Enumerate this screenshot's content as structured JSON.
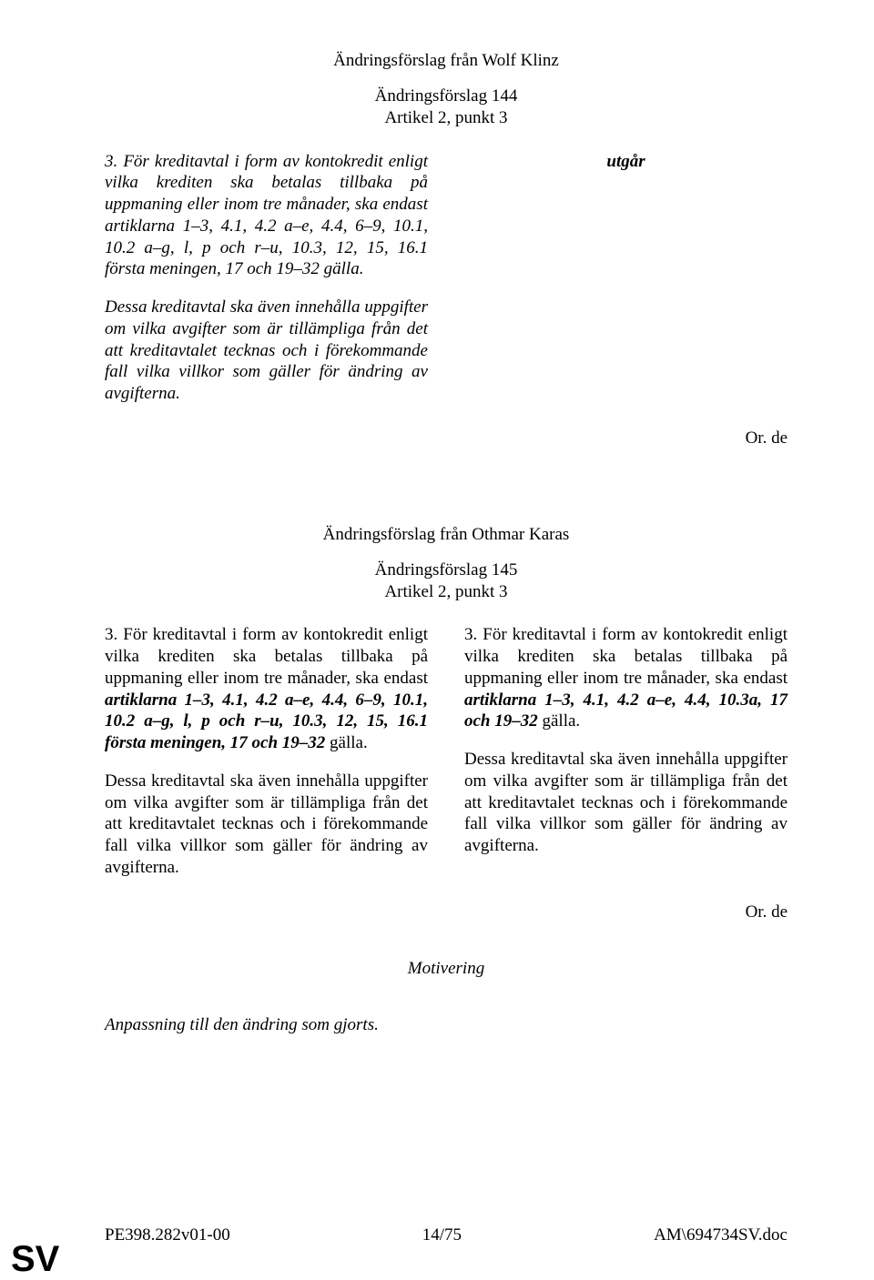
{
  "amend144": {
    "author": "Ändringsförslag från Wolf Klinz",
    "title_line1": "Ändringsförslag 144",
    "title_line2": "Artikel 2, punkt 3",
    "left_p1_prefix": "3. För kreditavtal i form av kontokredit enligt vilka krediten ska betalas tillbaka på uppmaning eller inom tre månader, ska endast artiklarna 1–3, 4.1, 4.2 a–e, 4.4, 6–9, 10.1, 10.2 a–g, l, p och r–u, 10.3, 12, 15, 16.1 första meningen, 17 och 19–32 gälla.",
    "left_p2": "Dessa kreditavtal ska även innehålla uppgifter om vilka avgifter som är tillämpliga från det att kreditavtalet tecknas och i förekommande fall vilka villkor som gäller för ändring av avgifterna.",
    "right_p1": "utgår",
    "orig_lang": "Or. de"
  },
  "amend145": {
    "author": "Ändringsförslag från Othmar Karas",
    "title_line1": "Ändringsförslag 145",
    "title_line2": "Artikel 2, punkt 3",
    "left_p1_plain1": "3. För kreditavtal i form av kontokredit enligt vilka krediten ska betalas tillbaka på uppmaning eller inom tre månader, ska endast ",
    "left_p1_bold": "artiklarna 1–3, 4.1, 4.2 a–e, 4.4, 6–9, 10.1, 10.2 a–g, l, p och r–u, 10.3, 12, 15, 16.1 första meningen, 17 och 19–32",
    "left_p1_plain2": " gälla.",
    "left_p2": "Dessa kreditavtal ska även innehålla uppgifter om vilka avgifter som är tillämpliga från det att kreditavtalet tecknas och i förekommande fall vilka villkor som gäller för ändring av avgifterna.",
    "right_p1_plain1": "3. För kreditavtal i form av kontokredit enligt vilka krediten ska betalas tillbaka på uppmaning eller inom tre månader, ska endast ",
    "right_p1_bold": "artiklarna 1–3, 4.1, 4.2 a–e, 4.4, 10.3a, 17 och 19–32",
    "right_p1_plain2": " gälla.",
    "right_p2": "Dessa kreditavtal ska även innehålla uppgifter om vilka avgifter som är tillämpliga från det att kreditavtalet tecknas och i förekommande fall vilka villkor som gäller för ändring av avgifterna.",
    "orig_lang": "Or. de"
  },
  "motivering": {
    "label": "Motivering",
    "body": "Anpassning till den ändring som gjorts."
  },
  "footer": {
    "left": "PE398.282v01-00",
    "center": "14/75",
    "right": "AM\\694734SV.doc"
  },
  "lang_mark": "SV"
}
